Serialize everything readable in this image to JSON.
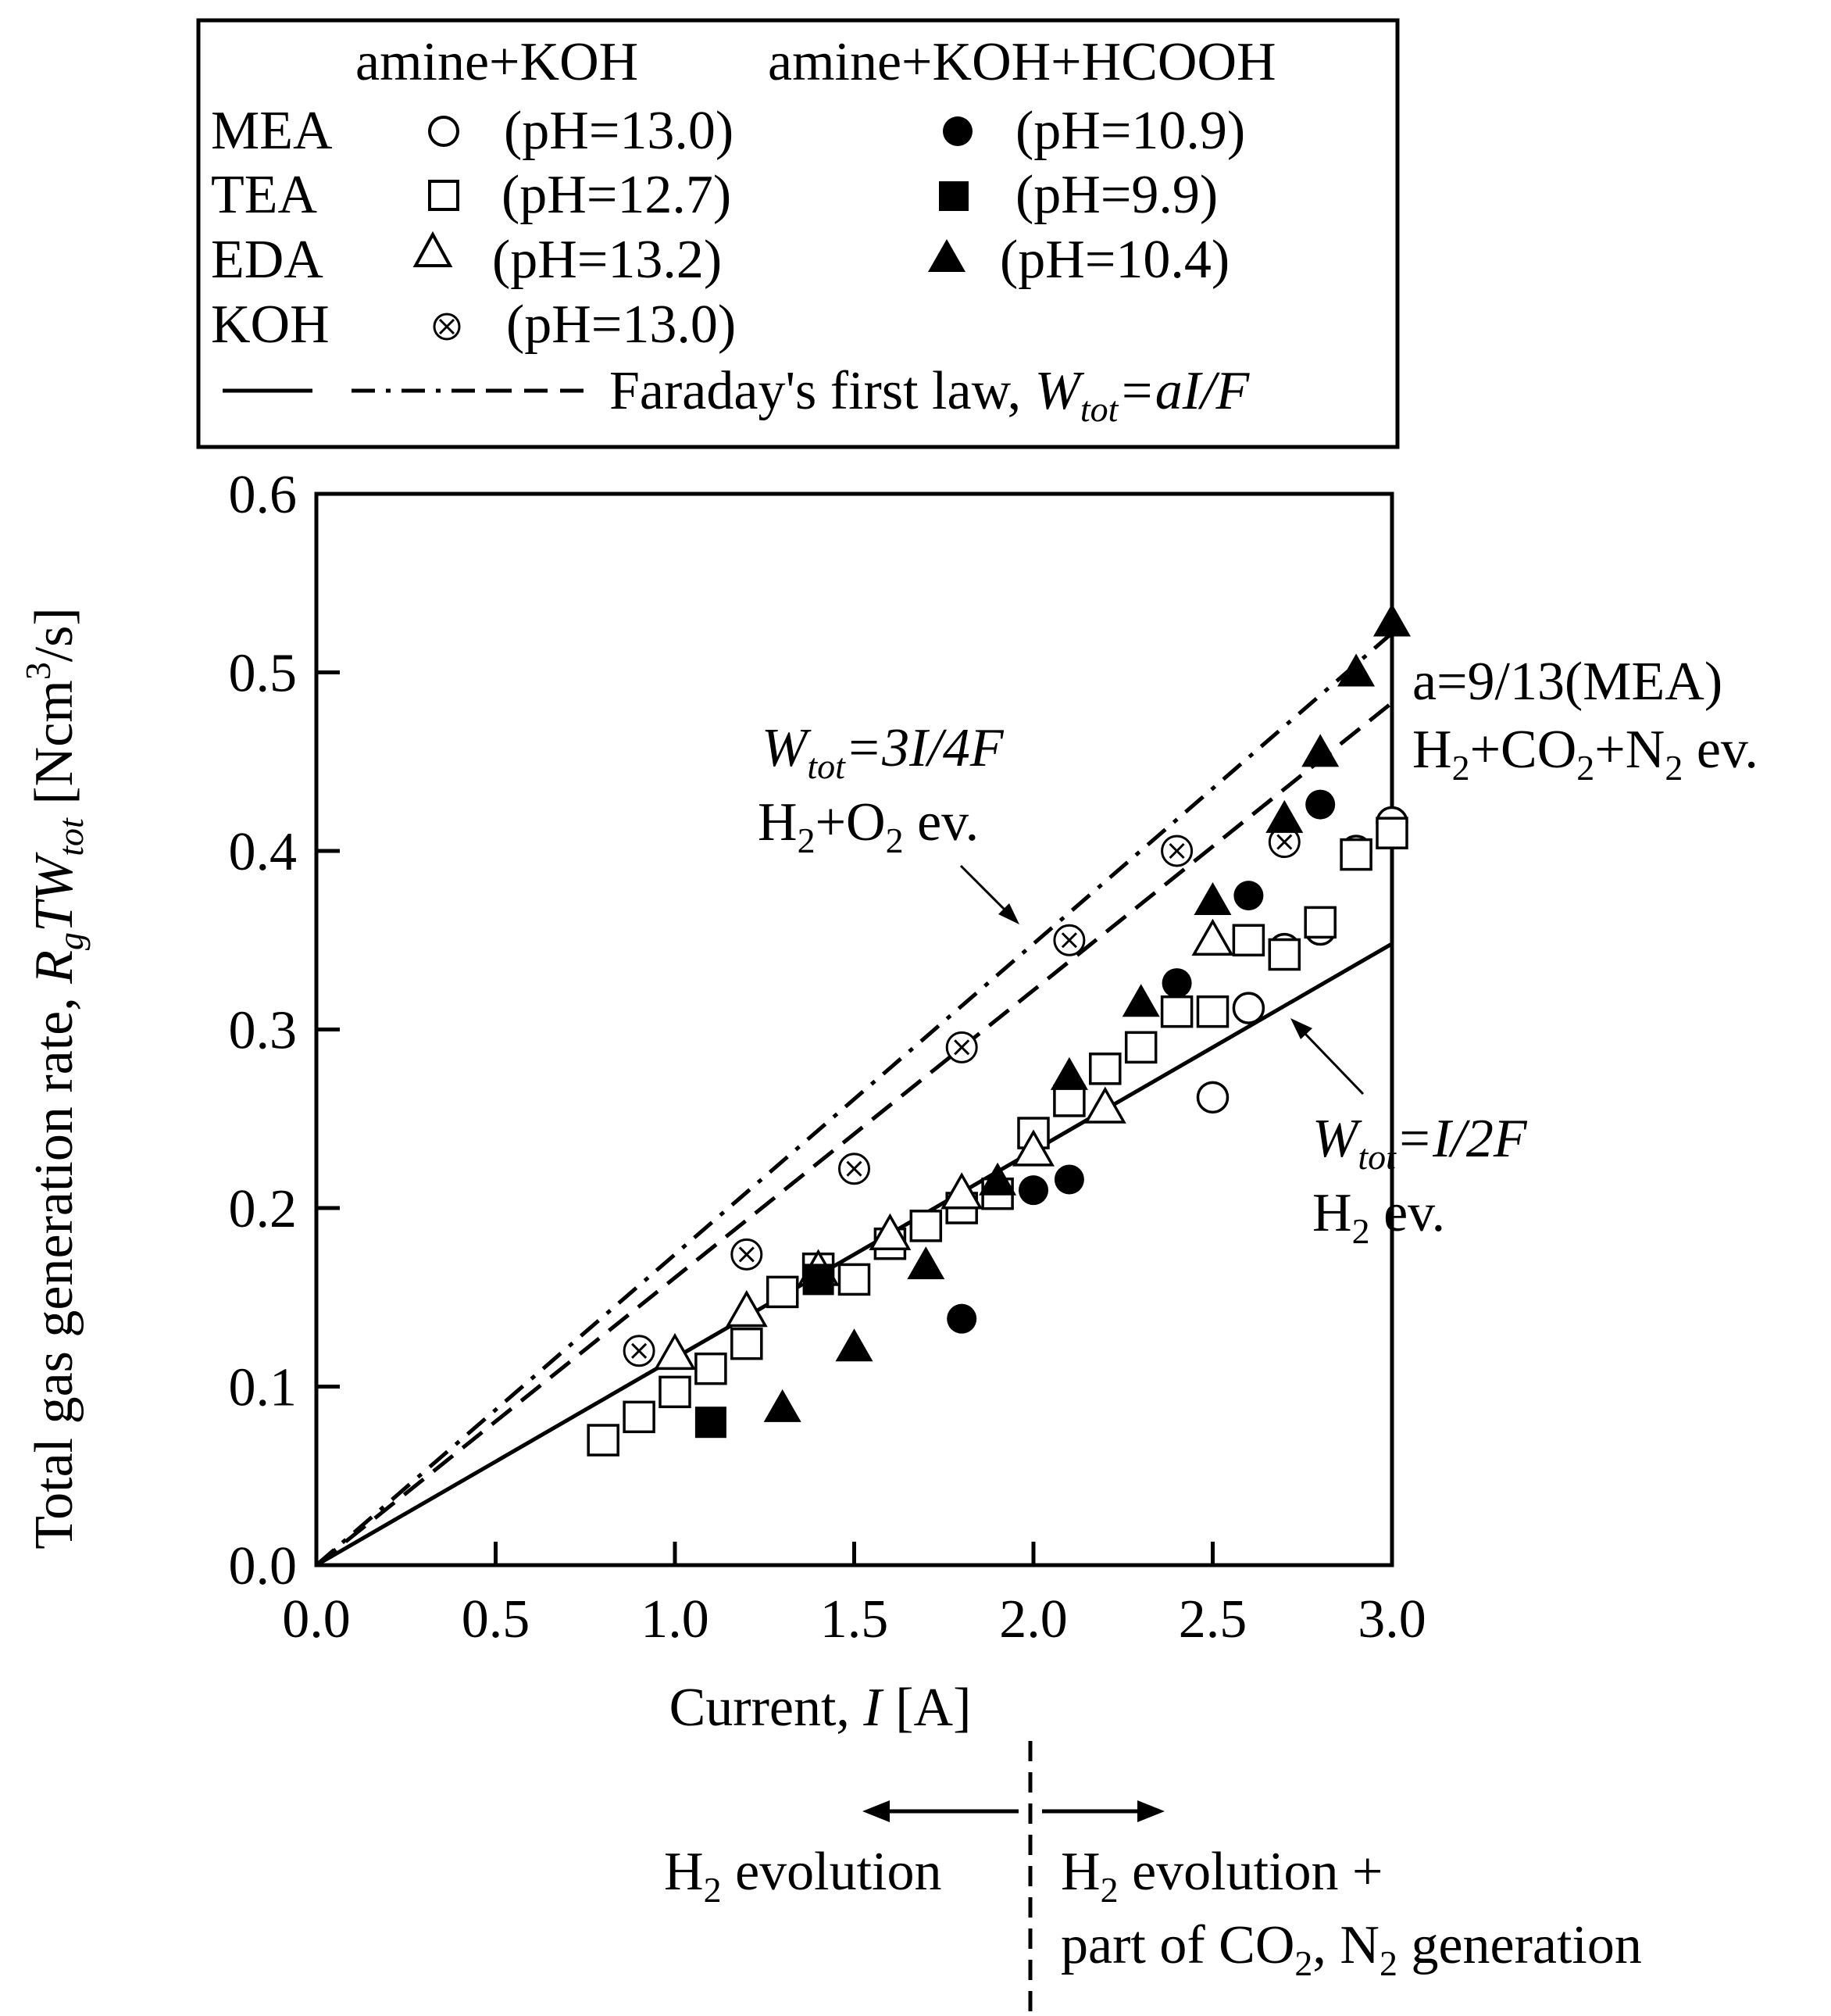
{
  "legend": {
    "col_header_1": "amine+KOH",
    "col_header_2": "amine+KOH+HCOOH",
    "rows": [
      {
        "name": "MEA",
        "ph1": "(pH=13.0)",
        "ph2": "(pH=10.9)",
        "open": "circle",
        "filled": "circle"
      },
      {
        "name": "TEA",
        "ph1": "(pH=12.7)",
        "ph2": "(pH=9.9)",
        "open": "square",
        "filled": "square"
      },
      {
        "name": "EDA",
        "ph1": "(pH=13.2)",
        "ph2": "(pH=10.4)",
        "open": "triangle",
        "filled": "triangle"
      },
      {
        "name": "KOH",
        "ph1": "(pH=13.0)",
        "ph2": "",
        "open": "otimes",
        "filled": ""
      }
    ],
    "faraday_prefix": "Faraday's first law, ",
    "faraday_w": "W",
    "faraday_w_sub": "tot",
    "faraday_suffix": "=aI/F"
  },
  "annotations": {
    "three_quarter": {
      "w": "W",
      "sub": "tot",
      "eq": "=3I/4F",
      "line2_a": "H",
      "line2_sub": "2",
      "line2_b": "+O",
      "line2_sub2": "2",
      "line2_c": " ev."
    },
    "mea": {
      "line1": "a=9/13(MEA)",
      "l2_a": "H",
      "l2_s1": "2",
      "l2_b": "+CO",
      "l2_s2": "2",
      "l2_c": "+N",
      "l2_s3": "2",
      "l2_d": " ev."
    },
    "half": {
      "w": "W",
      "sub": "tot",
      "eq": "=I/2F",
      "line2_a": "H",
      "line2_sub": "2",
      "line2_c": " ev."
    }
  },
  "regions": {
    "left_a": "H",
    "left_sub": "2",
    "left_b": " evolution",
    "right_l1_a": "H",
    "right_l1_sub": "2",
    "right_l1_b": " evolution +",
    "right_l2_a": "part of CO",
    "right_l2_sub": "2",
    "right_l2_b": ", N",
    "right_l2_sub2": "2",
    "right_l2_c": " generation"
  },
  "chart_data": {
    "type": "scatter",
    "title": "",
    "xlabel_prefix": "Current, ",
    "xlabel_var": "I",
    "xlabel_unit": " [A]",
    "ylabel_prefix": "Total gas generation rate, ",
    "ylabel_R": "R",
    "ylabel_g": "g",
    "ylabel_TW": "TW",
    "ylabel_tot": "tot",
    "ylabel_unit_a": " [Ncm",
    "ylabel_unit_sup": "3",
    "ylabel_unit_b": "/s]",
    "xlim": [
      0.0,
      3.0
    ],
    "ylim": [
      0.0,
      0.6
    ],
    "xticks": [
      0.0,
      0.5,
      1.0,
      1.5,
      2.0,
      2.5,
      3.0
    ],
    "xtick_labels": [
      "0.0",
      "0.5",
      "1.0",
      "1.5",
      "2.0",
      "2.5",
      "3.0"
    ],
    "yticks": [
      0.0,
      0.1,
      0.2,
      0.3,
      0.4,
      0.5,
      0.6
    ],
    "ytick_labels": [
      "0.0",
      "0.1",
      "0.2",
      "0.3",
      "0.4",
      "0.5",
      "0.6"
    ],
    "region_divider_x": 2.0,
    "lines": [
      {
        "name": "W_tot=I/2F (H2 ev.)",
        "style": "solid",
        "slope": 0.116
      },
      {
        "name": "W_tot=3I/4F (H2+O2 ev.)",
        "style": "dashdot",
        "slope": 0.174
      },
      {
        "name": "a=9/13 (MEA) H2+CO2+N2 ev.",
        "style": "dashed",
        "slope": 0.161
      }
    ],
    "series": [
      {
        "name": "MEA amine+KOH (pH=13.0)",
        "marker": "circle",
        "filled": false,
        "points": [
          [
            2.5,
            0.262
          ],
          [
            2.6,
            0.312
          ],
          [
            2.7,
            0.345
          ],
          [
            2.8,
            0.356
          ],
          [
            2.9,
            0.4
          ],
          [
            3.0,
            0.416
          ]
        ]
      },
      {
        "name": "TEA amine+KOH (pH=12.7)",
        "marker": "square",
        "filled": false,
        "points": [
          [
            0.8,
            0.07
          ],
          [
            0.9,
            0.083
          ],
          [
            1.0,
            0.097
          ],
          [
            1.1,
            0.11
          ],
          [
            1.2,
            0.124
          ],
          [
            1.3,
            0.153
          ],
          [
            1.4,
            0.166
          ],
          [
            1.5,
            0.16
          ],
          [
            1.6,
            0.18
          ],
          [
            1.7,
            0.19
          ],
          [
            1.8,
            0.2
          ],
          [
            1.9,
            0.208
          ],
          [
            2.0,
            0.242
          ],
          [
            2.1,
            0.26
          ],
          [
            2.2,
            0.278
          ],
          [
            2.3,
            0.29
          ],
          [
            2.4,
            0.31
          ],
          [
            2.5,
            0.31
          ],
          [
            2.6,
            0.35
          ],
          [
            2.7,
            0.342
          ],
          [
            2.8,
            0.36
          ],
          [
            2.9,
            0.398
          ],
          [
            3.0,
            0.41
          ]
        ]
      },
      {
        "name": "EDA amine+KOH (pH=13.2)",
        "marker": "triangle",
        "filled": false,
        "points": [
          [
            1.0,
            0.118
          ],
          [
            1.2,
            0.142
          ],
          [
            1.4,
            0.165
          ],
          [
            1.6,
            0.185
          ],
          [
            1.8,
            0.208
          ],
          [
            2.0,
            0.232
          ],
          [
            2.2,
            0.256
          ],
          [
            2.5,
            0.35
          ]
        ]
      },
      {
        "name": "KOH (pH=13.0)",
        "marker": "otimes",
        "filled": false,
        "points": [
          [
            0.9,
            0.12
          ],
          [
            1.2,
            0.174
          ],
          [
            1.5,
            0.222
          ],
          [
            1.8,
            0.29
          ],
          [
            2.1,
            0.35
          ],
          [
            2.4,
            0.4
          ],
          [
            2.7,
            0.405
          ]
        ]
      },
      {
        "name": "MEA amine+KOH+HCOOH (pH=10.9)",
        "marker": "circle",
        "filled": true,
        "points": [
          [
            1.8,
            0.138
          ],
          [
            2.0,
            0.21
          ],
          [
            2.1,
            0.216
          ],
          [
            2.4,
            0.326
          ],
          [
            2.6,
            0.375
          ],
          [
            2.8,
            0.426
          ]
        ]
      },
      {
        "name": "TEA amine+KOH+HCOOH (pH=9.9)",
        "marker": "square",
        "filled": true,
        "points": [
          [
            1.1,
            0.08
          ],
          [
            1.4,
            0.16
          ]
        ]
      },
      {
        "name": "EDA amine+KOH+HCOOH (pH=10.4)",
        "marker": "triangle",
        "filled": true,
        "points": [
          [
            1.3,
            0.088
          ],
          [
            1.5,
            0.122
          ],
          [
            1.7,
            0.168
          ],
          [
            1.9,
            0.215
          ],
          [
            2.1,
            0.274
          ],
          [
            2.3,
            0.315
          ],
          [
            2.5,
            0.372
          ],
          [
            2.7,
            0.418
          ],
          [
            2.8,
            0.455
          ],
          [
            2.9,
            0.5
          ],
          [
            3.0,
            0.528
          ]
        ]
      }
    ]
  }
}
